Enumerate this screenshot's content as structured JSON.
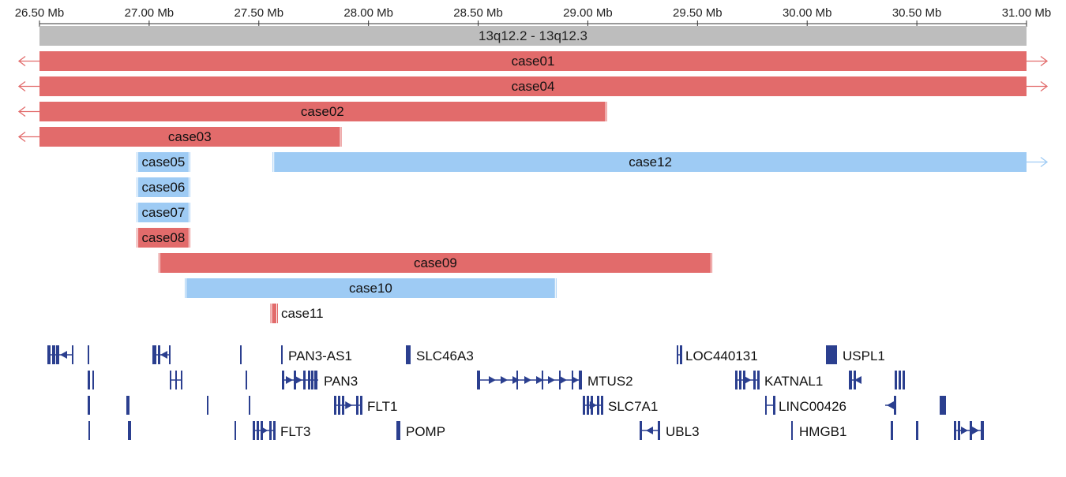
{
  "axis": {
    "ticks": [
      "26.50 Mb",
      "27.00 Mb",
      "27.50 Mb",
      "28.00 Mb",
      "28.50 Mb",
      "29.00 Mb",
      "29.50 Mb",
      "30.00 Mb",
      "30.50 Mb",
      "31.00 Mb"
    ],
    "tick_values": [
      26.5,
      27.0,
      27.5,
      28.0,
      28.5,
      29.0,
      29.5,
      30.0,
      30.5,
      31.0
    ],
    "range_mb": [
      26.5,
      31.0
    ]
  },
  "band": {
    "label": "13q12.2 - 13q12.3",
    "color": "#bdbdbd"
  },
  "colors": {
    "gain": "#e26b6b",
    "loss": "#9ecbf4",
    "gene": "#2b3f8f"
  },
  "cases": [
    {
      "label": "case01",
      "start": 26.5,
      "end": 31.0,
      "type": "gain",
      "extends_left": true,
      "extends_right": true
    },
    {
      "label": "case04",
      "start": 26.5,
      "end": 31.0,
      "type": "gain",
      "extends_left": true,
      "extends_right": true
    },
    {
      "label": "case02",
      "start": 26.5,
      "end": 29.08,
      "type": "gain",
      "extends_left": true,
      "extends_right": false
    },
    {
      "label": "case03",
      "start": 26.5,
      "end": 27.87,
      "type": "gain",
      "extends_left": true,
      "extends_right": false
    },
    {
      "label": "case05",
      "start": 26.95,
      "end": 27.18,
      "type": "loss",
      "extends_left": false,
      "extends_right": false
    },
    {
      "label": "case12",
      "start": 27.57,
      "end": 31.0,
      "type": "loss",
      "extends_left": false,
      "extends_right": true
    },
    {
      "label": "case06",
      "start": 26.95,
      "end": 27.18,
      "type": "loss",
      "extends_left": false,
      "extends_right": false
    },
    {
      "label": "case07",
      "start": 26.95,
      "end": 27.18,
      "type": "loss",
      "extends_left": false,
      "extends_right": false
    },
    {
      "label": "case08",
      "start": 26.95,
      "end": 27.18,
      "type": "gain",
      "extends_left": false,
      "extends_right": false
    },
    {
      "label": "case09",
      "start": 27.05,
      "end": 29.56,
      "type": "gain",
      "extends_left": false,
      "extends_right": false
    },
    {
      "label": "case10",
      "start": 27.17,
      "end": 28.85,
      "type": "loss",
      "extends_left": false,
      "extends_right": false
    },
    {
      "label": "case11",
      "start": 27.56,
      "end": 27.58,
      "type": "gain",
      "extends_left": false,
      "extends_right": false
    }
  ],
  "genes": [
    {
      "label": "PAN3-AS1",
      "start": 27.59,
      "end": 27.6
    },
    {
      "label": "SLC46A3",
      "start": 28.73,
      "end": 28.75
    },
    {
      "label": "LOC440131",
      "start": 29.83,
      "end": 29.85
    },
    {
      "label": "USPL1",
      "start": 30.49,
      "end": 30.54
    },
    {
      "label": "PAN3",
      "start": 27.59,
      "end": 27.75
    },
    {
      "label": "MTUS2",
      "start": 28.5,
      "end": 29.2
    },
    {
      "label": "KATNAL1",
      "start": 30.2,
      "end": 30.32
    },
    {
      "label": "FLT1",
      "start": 28.0,
      "end": 28.15
    },
    {
      "label": "SLC7A1",
      "start": 29.06,
      "end": 29.12
    },
    {
      "label": "LINC00426",
      "start": 30.25,
      "end": 30.29
    },
    {
      "label": "FLT3",
      "start": 27.5,
      "end": 27.6
    },
    {
      "label": "POMP",
      "start": 28.55,
      "end": 28.57
    },
    {
      "label": "UBL3",
      "start": 29.34,
      "end": 29.44
    },
    {
      "label": "HMGB1",
      "start": 30.03,
      "end": 30.05
    }
  ]
}
